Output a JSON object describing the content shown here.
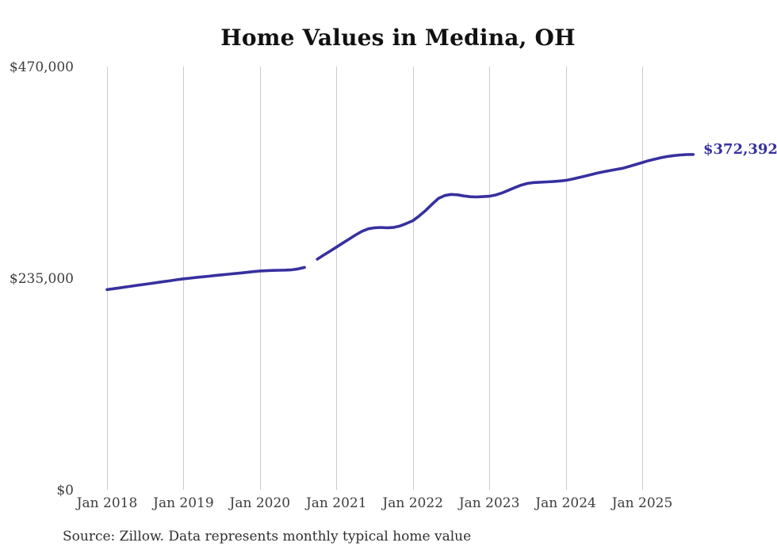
{
  "page": {
    "background_color": "#ffffff"
  },
  "chart": {
    "title": "Home Values in Medina, OH",
    "source_note": "Source: Zillow. Data represents monthly typical home value",
    "last_value_label": "$372,392",
    "colors": {
      "line": "#37309f",
      "grid": "#cccccc",
      "tick_text": "#3d3d3d",
      "title_text": "#111111",
      "annotation_text": "#37309f"
    }
  },
  "chart_data": {
    "type": "line",
    "title": "Home Values in Medina, OH",
    "series_name": "Typical home value, Medina OH (Zillow)",
    "start": "Jan 2018",
    "end": "Sep 2025",
    "frequency": "monthly",
    "grid": "vertical-only",
    "legend": "none",
    "gap_note": "line has a visible gap for one missing month (Sep 2020)",
    "ylim": [
      0,
      470000
    ],
    "y_ticks": [
      {
        "label": "$0",
        "value": 0
      },
      {
        "label": "$235,000",
        "value": 235000
      },
      {
        "label": "$470,000",
        "value": 470000
      }
    ],
    "x_tick_labels": [
      "Jan 2018",
      "Jan 2019",
      "Jan 2020",
      "Jan 2021",
      "Jan 2022",
      "Jan 2023",
      "Jan 2024",
      "Jan 2025"
    ],
    "x_tick_month_indices": [
      0,
      12,
      24,
      36,
      48,
      60,
      72,
      84
    ],
    "last_value": 372392,
    "last_value_label": "$372,392",
    "values": [
      222300,
      223300,
      224300,
      225300,
      226300,
      227300,
      228300,
      229300,
      230300,
      231300,
      232300,
      233300,
      234300,
      235000,
      235800,
      236500,
      237200,
      238000,
      238700,
      239400,
      240100,
      240800,
      241500,
      242300,
      243000,
      243300,
      243600,
      243800,
      244000,
      244300,
      245300,
      247000,
      null,
      256100,
      260600,
      265000,
      269500,
      274000,
      278500,
      283000,
      287000,
      289800,
      291000,
      291300,
      291000,
      291400,
      293000,
      295800,
      298800,
      304200,
      310200,
      317000,
      323500,
      326800,
      328000,
      327600,
      326400,
      325500,
      325200,
      325600,
      326000,
      327400,
      329700,
      332600,
      335600,
      338300,
      340300,
      341200,
      341600,
      341900,
      342300,
      342900,
      343600,
      345000,
      346700,
      348400,
      350100,
      351800,
      353300,
      354600,
      355900,
      357200,
      359200,
      361300,
      363400,
      365500,
      367300,
      368900,
      370200,
      371200,
      371900,
      372300,
      372392
    ]
  }
}
